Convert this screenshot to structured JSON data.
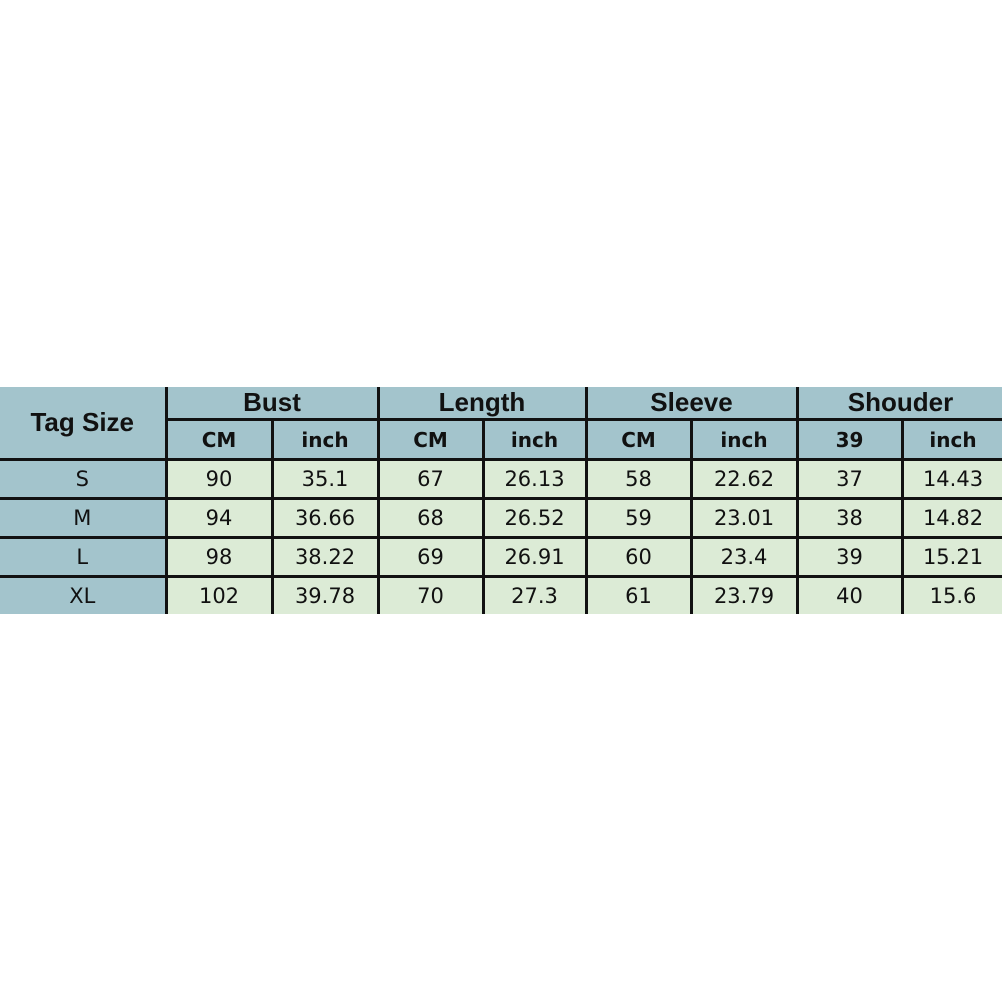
{
  "table": {
    "corner_label": "Tag Size",
    "groups": [
      "Bust",
      "Length",
      "Sleeve",
      "Shouder"
    ],
    "units": [
      "CM",
      "inch",
      "CM",
      "inch",
      "CM",
      "inch",
      "39",
      "inch"
    ],
    "rows": [
      {
        "size": "S",
        "values": [
          "90",
          "35.1",
          "67",
          "26.13",
          "58",
          "22.62",
          "37",
          "14.43"
        ]
      },
      {
        "size": "M",
        "values": [
          "94",
          "36.66",
          "68",
          "26.52",
          "59",
          "23.01",
          "38",
          "14.82"
        ]
      },
      {
        "size": "L",
        "values": [
          "98",
          "38.22",
          "69",
          "26.91",
          "60",
          "23.4",
          "39",
          "15.21"
        ]
      },
      {
        "size": "XL",
        "values": [
          "102",
          "39.78",
          "70",
          "27.3",
          "61",
          "23.79",
          "40",
          "15.6"
        ]
      }
    ],
    "colors": {
      "header": "#a3c4cc",
      "data": "#dcebd6",
      "border": "#111111"
    }
  }
}
